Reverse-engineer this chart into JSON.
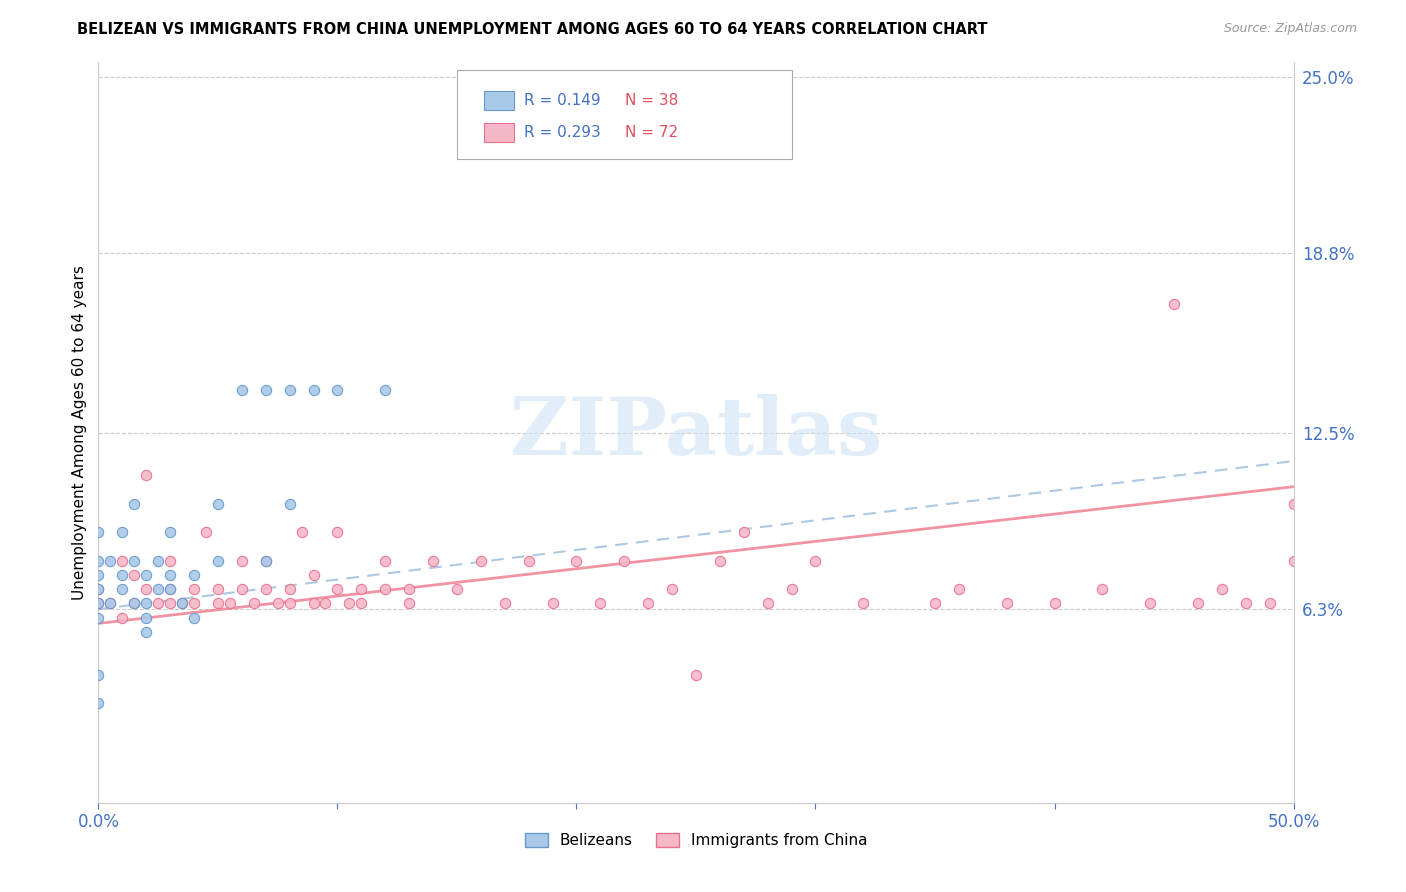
{
  "title": "BELIZEAN VS IMMIGRANTS FROM CHINA UNEMPLOYMENT AMONG AGES 60 TO 64 YEARS CORRELATION CHART",
  "source": "Source: ZipAtlas.com",
  "ylabel": "Unemployment Among Ages 60 to 64 years",
  "xlim": [
    0.0,
    0.5
  ],
  "ylim": [
    -0.005,
    0.255
  ],
  "xticks": [
    0.0,
    0.1,
    0.2,
    0.3,
    0.4,
    0.5
  ],
  "xticklabels": [
    "0.0%",
    "",
    "",
    "",
    "",
    "50.0%"
  ],
  "ytick_labels_right": [
    "25.0%",
    "18.8%",
    "12.5%",
    "6.3%"
  ],
  "ytick_values_right": [
    0.25,
    0.188,
    0.125,
    0.063
  ],
  "belizean_R": "0.149",
  "belizean_N": "38",
  "china_R": "0.293",
  "china_N": "72",
  "belizean_scatter_color": "#aac8e8",
  "belizean_edge_color": "#6699cc",
  "china_scatter_color": "#f5b8c8",
  "china_edge_color": "#e87090",
  "trendline_belizean_color": "#99bbdd",
  "trendline_china_color": "#f08898",
  "legend_box_color": "#4472c4",
  "legend_r_bel_color": "#4472c4",
  "legend_n_bel_color": "#e05060",
  "legend_r_chi_color": "#4472c4",
  "legend_n_chi_color": "#e05060",
  "watermark_color": "#cde4f5",
  "belizean_x": [
    0.0,
    0.0,
    0.0,
    0.0,
    0.0,
    0.0,
    0.0,
    0.0,
    0.005,
    0.005,
    0.01,
    0.01,
    0.01,
    0.015,
    0.015,
    0.015,
    0.02,
    0.02,
    0.02,
    0.02,
    0.025,
    0.025,
    0.03,
    0.03,
    0.03,
    0.035,
    0.04,
    0.04,
    0.05,
    0.05,
    0.06,
    0.07,
    0.07,
    0.08,
    0.08,
    0.09,
    0.1,
    0.12
  ],
  "belizean_y": [
    0.06,
    0.065,
    0.07,
    0.075,
    0.08,
    0.09,
    0.04,
    0.03,
    0.065,
    0.08,
    0.07,
    0.075,
    0.09,
    0.065,
    0.08,
    0.1,
    0.06,
    0.075,
    0.065,
    0.055,
    0.07,
    0.08,
    0.075,
    0.09,
    0.07,
    0.065,
    0.06,
    0.075,
    0.08,
    0.1,
    0.14,
    0.14,
    0.08,
    0.14,
    0.1,
    0.14,
    0.14,
    0.14
  ],
  "china_x": [
    0.0,
    0.0,
    0.005,
    0.01,
    0.01,
    0.015,
    0.015,
    0.02,
    0.02,
    0.025,
    0.03,
    0.03,
    0.03,
    0.035,
    0.04,
    0.04,
    0.045,
    0.05,
    0.05,
    0.055,
    0.06,
    0.06,
    0.065,
    0.07,
    0.07,
    0.075,
    0.08,
    0.08,
    0.085,
    0.09,
    0.09,
    0.095,
    0.1,
    0.1,
    0.105,
    0.11,
    0.11,
    0.12,
    0.12,
    0.13,
    0.13,
    0.14,
    0.15,
    0.16,
    0.17,
    0.18,
    0.19,
    0.2,
    0.21,
    0.22,
    0.23,
    0.24,
    0.25,
    0.26,
    0.27,
    0.28,
    0.29,
    0.3,
    0.32,
    0.35,
    0.36,
    0.38,
    0.4,
    0.42,
    0.44,
    0.45,
    0.46,
    0.47,
    0.48,
    0.49,
    0.5,
    0.5
  ],
  "china_y": [
    0.065,
    0.07,
    0.065,
    0.06,
    0.08,
    0.065,
    0.075,
    0.07,
    0.11,
    0.065,
    0.065,
    0.07,
    0.08,
    0.065,
    0.07,
    0.065,
    0.09,
    0.07,
    0.065,
    0.065,
    0.07,
    0.08,
    0.065,
    0.07,
    0.08,
    0.065,
    0.07,
    0.065,
    0.09,
    0.065,
    0.075,
    0.065,
    0.07,
    0.09,
    0.065,
    0.07,
    0.065,
    0.08,
    0.07,
    0.07,
    0.065,
    0.08,
    0.07,
    0.08,
    0.065,
    0.08,
    0.065,
    0.08,
    0.065,
    0.08,
    0.065,
    0.07,
    0.04,
    0.08,
    0.09,
    0.065,
    0.07,
    0.08,
    0.065,
    0.065,
    0.07,
    0.065,
    0.065,
    0.07,
    0.065,
    0.17,
    0.065,
    0.07,
    0.065,
    0.065,
    0.1,
    0.08
  ],
  "bel_trend_x0": 0.0,
  "bel_trend_x1": 0.5,
  "bel_trend_y0": 0.063,
  "bel_trend_y1": 0.115,
  "chi_trend_x0": 0.0,
  "chi_trend_x1": 0.5,
  "chi_trend_y0": 0.058,
  "chi_trend_y1": 0.106
}
